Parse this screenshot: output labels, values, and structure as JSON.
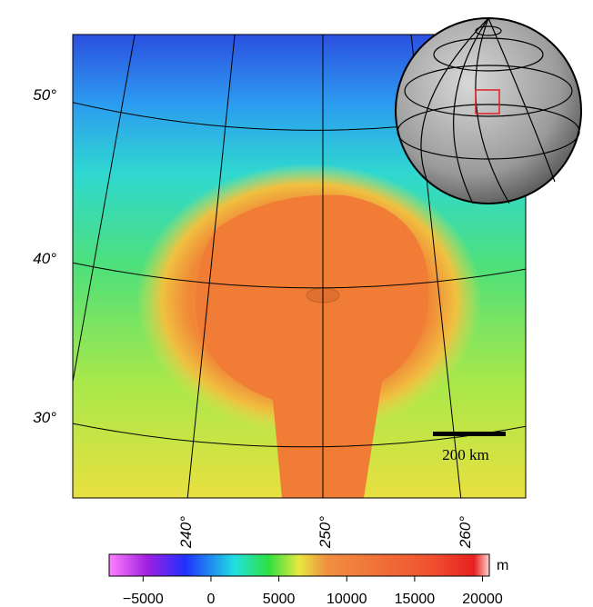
{
  "map": {
    "latitude_labels": [
      "50°",
      "40°",
      "30°"
    ],
    "longitude_labels": [
      "240°",
      "250°",
      "260°"
    ],
    "scale_bar": "200 km"
  },
  "colorbar": {
    "unit": "m",
    "lim": [
      -7500,
      20500
    ],
    "ticks": [
      {
        "value": -5000,
        "label": "−5000"
      },
      0,
      5000,
      10000,
      15000,
      20000
    ]
  }
}
